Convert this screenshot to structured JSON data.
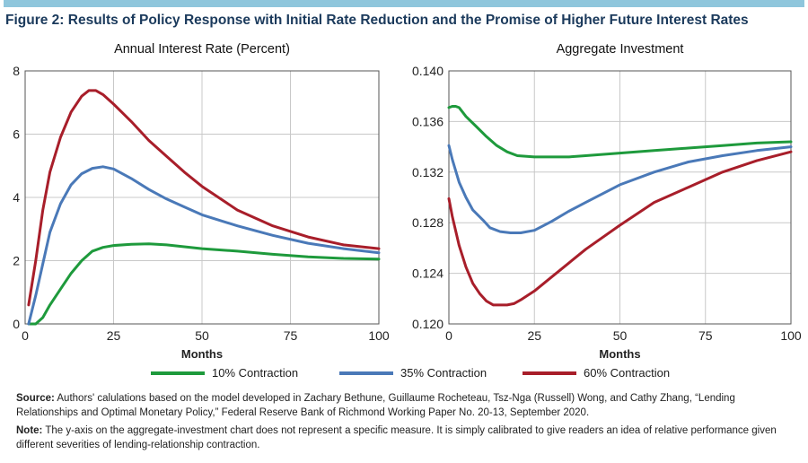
{
  "figure_title": "Figure 2: Results of Policy Response with Initial Rate Reduction and the Promise of Higher Future Interest Rates",
  "colors": {
    "accent_bar": "#8fc6dc",
    "title": "#1b3a5c",
    "green": "#1e9a3c",
    "blue": "#4a79b8",
    "red": "#a81e2a",
    "grid": "#c8c8c8"
  },
  "legend": [
    {
      "label": "10% Contraction",
      "color": "#1e9a3c"
    },
    {
      "label": "35% Contraction",
      "color": "#4a79b8"
    },
    {
      "label": "60% Contraction",
      "color": "#a81e2a"
    }
  ],
  "chart_data": [
    {
      "type": "line",
      "title": "Annual Interest Rate (Percent)",
      "xlabel": "Months",
      "ylabel": "",
      "xlim": [
        0,
        100
      ],
      "ylim": [
        0,
        8
      ],
      "xticks": [
        0,
        25,
        50,
        75,
        100
      ],
      "yticks": [
        0,
        2,
        4,
        6,
        8
      ],
      "ytick_labels": [
        "0",
        "2",
        "4",
        "6",
        "8"
      ],
      "series": [
        {
          "name": "10% Contraction",
          "color": "#1e9a3c",
          "x": [
            1,
            3,
            5,
            7,
            10,
            13,
            16,
            19,
            22,
            25,
            30,
            35,
            40,
            45,
            50,
            60,
            70,
            80,
            90,
            100
          ],
          "y": [
            0,
            0,
            0.2,
            0.6,
            1.1,
            1.6,
            2.0,
            2.3,
            2.42,
            2.48,
            2.52,
            2.53,
            2.5,
            2.44,
            2.38,
            2.3,
            2.2,
            2.12,
            2.07,
            2.05
          ]
        },
        {
          "name": "35% Contraction",
          "color": "#4a79b8",
          "x": [
            1,
            3,
            5,
            7,
            10,
            13,
            16,
            19,
            22,
            25,
            30,
            35,
            40,
            45,
            50,
            60,
            70,
            80,
            90,
            100
          ],
          "y": [
            0,
            0.9,
            1.9,
            2.9,
            3.8,
            4.4,
            4.75,
            4.92,
            4.97,
            4.9,
            4.6,
            4.25,
            3.95,
            3.7,
            3.45,
            3.1,
            2.8,
            2.55,
            2.38,
            2.25
          ]
        },
        {
          "name": "60% Contraction",
          "color": "#a81e2a",
          "x": [
            1,
            3,
            5,
            7,
            10,
            13,
            16,
            18,
            20,
            22,
            25,
            30,
            35,
            40,
            45,
            50,
            60,
            70,
            80,
            90,
            100
          ],
          "y": [
            0.6,
            2.0,
            3.6,
            4.8,
            5.9,
            6.7,
            7.2,
            7.38,
            7.38,
            7.25,
            6.95,
            6.4,
            5.8,
            5.3,
            4.8,
            4.35,
            3.6,
            3.1,
            2.75,
            2.5,
            2.38
          ]
        }
      ]
    },
    {
      "type": "line",
      "title": "Aggregate Investment",
      "xlabel": "Months",
      "ylabel": "",
      "xlim": [
        0,
        100
      ],
      "ylim": [
        0.12,
        0.14
      ],
      "xticks": [
        0,
        25,
        50,
        75,
        100
      ],
      "yticks": [
        0.12,
        0.124,
        0.128,
        0.132,
        0.136,
        0.14
      ],
      "ytick_labels": [
        "0.120",
        "0.124",
        "0.128",
        "0.132",
        "0.136",
        "0.140"
      ],
      "series": [
        {
          "name": "10% Contraction",
          "color": "#1e9a3c",
          "x": [
            0,
            1,
            2,
            3,
            5,
            8,
            11,
            14,
            17,
            20,
            25,
            30,
            35,
            40,
            50,
            60,
            70,
            80,
            90,
            100
          ],
          "y": [
            0.1371,
            0.1372,
            0.1372,
            0.1371,
            0.1364,
            0.1356,
            0.1348,
            0.1341,
            0.1336,
            0.1333,
            0.1332,
            0.1332,
            0.1332,
            0.1333,
            0.1335,
            0.1337,
            0.1339,
            0.1341,
            0.1343,
            0.1344
          ]
        },
        {
          "name": "35% Contraction",
          "color": "#4a79b8",
          "x": [
            0,
            1,
            3,
            5,
            7,
            10,
            12,
            15,
            18,
            21,
            25,
            30,
            35,
            40,
            50,
            60,
            70,
            80,
            90,
            100
          ],
          "y": [
            0.1341,
            0.133,
            0.1312,
            0.13,
            0.129,
            0.1282,
            0.1276,
            0.1273,
            0.1272,
            0.1272,
            0.1274,
            0.1281,
            0.1289,
            0.1296,
            0.131,
            0.132,
            0.1328,
            0.1333,
            0.1337,
            0.134
          ]
        },
        {
          "name": "60% Contraction",
          "color": "#a81e2a",
          "x": [
            0,
            1,
            3,
            5,
            7,
            9,
            11,
            13,
            15,
            17,
            19,
            21,
            25,
            30,
            35,
            40,
            50,
            60,
            70,
            80,
            90,
            100
          ],
          "y": [
            0.1299,
            0.1285,
            0.1262,
            0.1245,
            0.1232,
            0.1224,
            0.1218,
            0.1215,
            0.1215,
            0.1215,
            0.1216,
            0.1219,
            0.1226,
            0.1237,
            0.1248,
            0.1259,
            0.1278,
            0.1296,
            0.1308,
            0.132,
            0.1329,
            0.1336
          ]
        }
      ]
    }
  ],
  "notes": {
    "source_label": "Source:",
    "source_text": " Authors' calulations based on the model developed in Zachary Bethune, Guillaume Rocheteau, Tsz-Nga (Russell) Wong, and Cathy Zhang, “Lending Relationships and Optimal Monetary Policy,” Federal Reserve Bank of Richmond Working Paper No. 20-13, September 2020.",
    "note_label": "Note:",
    "note_text": " The y-axis on the aggregate-investment chart does not represent a specific measure. It is simply calibrated to give readers an idea of relative performance given different severities of lending-relationship contraction."
  }
}
